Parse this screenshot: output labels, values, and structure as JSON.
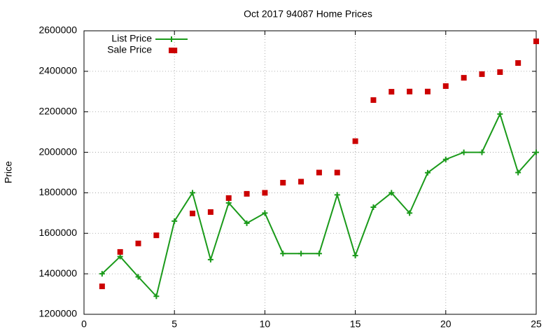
{
  "chart_data": {
    "type": "line",
    "title": "Oct 2017 94087 Home Prices",
    "y_label": "Price",
    "x": [
      1,
      2,
      3,
      4,
      5,
      6,
      7,
      8,
      9,
      10,
      11,
      12,
      13,
      14,
      15,
      16,
      17,
      18,
      19,
      20,
      21,
      22,
      23,
      24,
      25
    ],
    "series": [
      {
        "name": "List Price",
        "color": "#1a9a1a",
        "mode": "lines+markers",
        "values": [
          1400000,
          1485000,
          1385000,
          1289000,
          1660000,
          1800000,
          1470000,
          1750000,
          1650000,
          1700000,
          1500000,
          1500000,
          1500000,
          1790000,
          1490000,
          1729000,
          1800000,
          1700000,
          1899000,
          1965000,
          2000000,
          2000000,
          2189000,
          1900000,
          2000000
        ]
      },
      {
        "name": "Sale Price",
        "color": "#cc0000",
        "mode": "markers",
        "values": [
          1338000,
          1508000,
          1550000,
          1590000,
          2503000,
          1698000,
          1705000,
          1774000,
          1795000,
          1800000,
          1850000,
          1855000,
          1900000,
          1900000,
          2055000,
          2258000,
          2299000,
          2300000,
          2300000,
          2327000,
          2368000,
          2386000,
          2396000,
          2441000,
          2548000
        ]
      }
    ],
    "xlim": [
      0,
      25
    ],
    "xticks": [
      0,
      5,
      10,
      15,
      20,
      25
    ],
    "ylim": [
      1200000,
      2600000
    ],
    "yticks": [
      1200000,
      1400000,
      1600000,
      1800000,
      2000000,
      2200000,
      2400000,
      2600000
    ],
    "grid": true,
    "legend": "top-left"
  }
}
